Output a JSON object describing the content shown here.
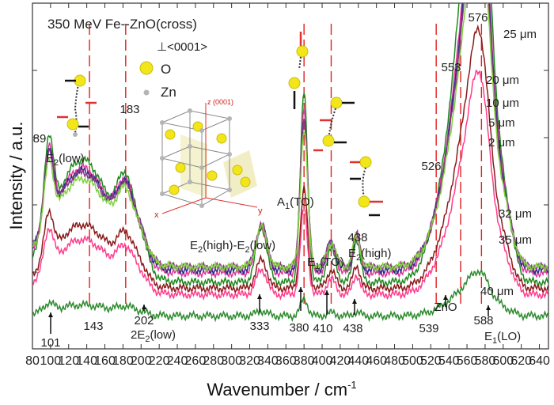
{
  "chart_data": {
    "type": "line",
    "title": "350 MeV Fe--ZnO(cross)",
    "xlabel": "Wavenumber / cm",
    "xlabel_sup": "-1",
    "ylabel": "Intensity / a.u.",
    "xlim": [
      80,
      650
    ],
    "ylim": [
      0,
      100
    ],
    "x_ticks": [
      80,
      100,
      120,
      140,
      160,
      180,
      200,
      220,
      240,
      260,
      280,
      300,
      320,
      340,
      360,
      380,
      400,
      420,
      440,
      460,
      480,
      500,
      520,
      540,
      560,
      580,
      600,
      620,
      640
    ],
    "legend": {
      "title": "⊥<0001>",
      "entries": [
        {
          "label": "O",
          "color": "#f2e61a"
        },
        {
          "label": "Zn",
          "color": "#b4b4b4"
        }
      ]
    },
    "crystal_axes": {
      "z": "z (0001)",
      "x": "x",
      "y": "y"
    },
    "series": [
      {
        "name": "25 μm",
        "color": "#1e8a1e",
        "scale": 1.0,
        "base": 14
      },
      {
        "name": "20 μm",
        "color": "#e0389c",
        "scale": 0.86,
        "base": 17
      },
      {
        "name": "10 μm",
        "color": "#2b2b8c",
        "scale": 0.81,
        "base": 18
      },
      {
        "name": "5 μm",
        "color": "#8b3a8b",
        "scale": 0.77,
        "base": 19
      },
      {
        "name": "2 μm",
        "color": "#7fd13a",
        "scale": 0.72,
        "base": 19
      },
      {
        "name": "32 μm",
        "color": "#8b1a1a",
        "scale": 0.52,
        "base": 12
      },
      {
        "name": "35 μm",
        "color": "#ff3c8c",
        "scale": 0.45,
        "base": 10
      },
      {
        "name": "40 μm",
        "color": "#2e8b2e",
        "scale": 0.09,
        "base": 3
      }
    ],
    "peak_labels_top": [
      {
        "label": "89",
        "x": 89
      },
      {
        "label": "183",
        "x": 183
      },
      {
        "label": "526",
        "x": 526
      },
      {
        "label": "553",
        "x": 553
      },
      {
        "label": "576",
        "x": 576
      }
    ],
    "mode_labels": [
      {
        "main": "E",
        "sub": "2",
        "tail": "(low)",
        "x": 92
      },
      {
        "main": "A",
        "sub": "1",
        "tail": "(TO)",
        "x": 385
      },
      {
        "main": "E",
        "sub": "2",
        "tail": "(high)-E",
        "sub2": "2",
        "tail2": "(low)",
        "x": 305
      },
      {
        "main": "E",
        "sub": "1",
        "tail": "(TO)",
        "x": 392
      },
      {
        "main": "E",
        "sub": "2",
        "tail": "(high)",
        "x": 432
      },
      {
        "main": "438",
        "x": 438
      }
    ],
    "bottom_labels": [
      {
        "label": "101",
        "x": 101
      },
      {
        "label": "143",
        "x": 143
      },
      {
        "label": "202",
        "x": 202
      },
      {
        "label": "2E",
        "sub": "2",
        "tail": "(low)",
        "x": 202
      },
      {
        "label": "333",
        "x": 333
      },
      {
        "label": "380",
        "x": 380
      },
      {
        "label": "410",
        "x": 410
      },
      {
        "label": "438",
        "x": 438
      },
      {
        "label": "539",
        "x": 539
      },
      {
        "label": "ZnO",
        "x": 551
      },
      {
        "label": "588",
        "x": 588
      },
      {
        "label": "E",
        "sub": "1",
        "tail": "(LO)",
        "x": 588
      }
    ],
    "red_dashed_lines": [
      143,
      183,
      380,
      410,
      526,
      553,
      576
    ]
  }
}
